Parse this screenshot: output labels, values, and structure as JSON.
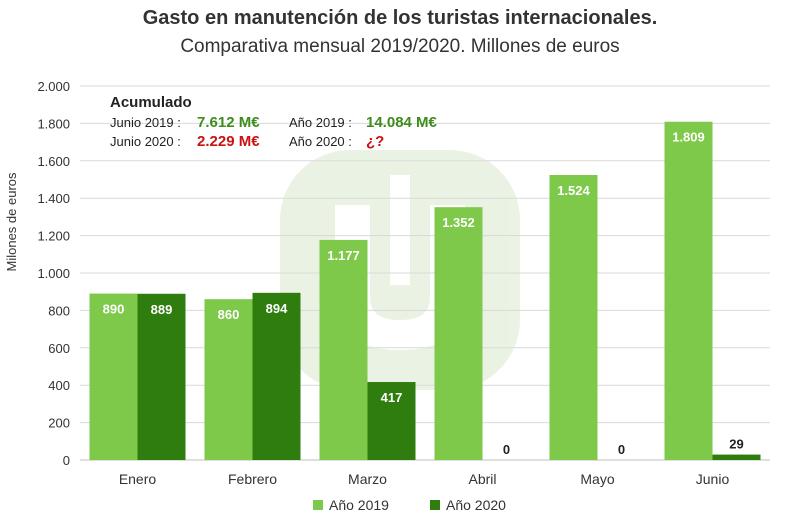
{
  "chart_data": {
    "type": "bar",
    "title": "Gasto en manutención de los turistas internacionales.",
    "subtitle": "Comparativa mensual 2019/2020. Millones de euros",
    "ylabel": "Milones de euros",
    "ylim": [
      0,
      2000
    ],
    "yticks": [
      0,
      200,
      400,
      600,
      800,
      1000,
      1200,
      1400,
      1600,
      1800,
      2000
    ],
    "ytick_labels": [
      "0",
      "200",
      "400",
      "600",
      "800",
      "1.000",
      "1.200",
      "1.400",
      "1.600",
      "1.800",
      "2.000"
    ],
    "grid": "horizontal",
    "legend_position": "bottom",
    "categories": [
      "Enero",
      "Febrero",
      "Marzo",
      "Abril",
      "Mayo",
      "Junio"
    ],
    "series": [
      {
        "name": "Año 2019",
        "color": "#7ec84a",
        "values": [
          890,
          860,
          1177,
          1352,
          1524,
          1809
        ],
        "labels": [
          "890",
          "860",
          "1.177",
          "1.352",
          "1.524",
          "1.809"
        ]
      },
      {
        "name": "Año 2020",
        "color": "#2f7d0f",
        "values": [
          889,
          894,
          417,
          0,
          0,
          29
        ],
        "labels": [
          "889",
          "894",
          "417",
          "0",
          "0",
          "29"
        ]
      }
    ],
    "annotation": {
      "heading": "Acumulado",
      "junio2019_label": "Junio 2019 :",
      "junio2019_value": "7.612 M€",
      "junio2020_label": "Junio 2020 :",
      "junio2020_value": "2.229 M€",
      "ano2019_label": "Año 2019 :",
      "ano2019_value": "14.084 M€",
      "ano2020_label": "Año 2020 :",
      "ano2020_value": "¿?",
      "green_color": "#3d8c1c",
      "red_color": "#cc1111"
    }
  }
}
